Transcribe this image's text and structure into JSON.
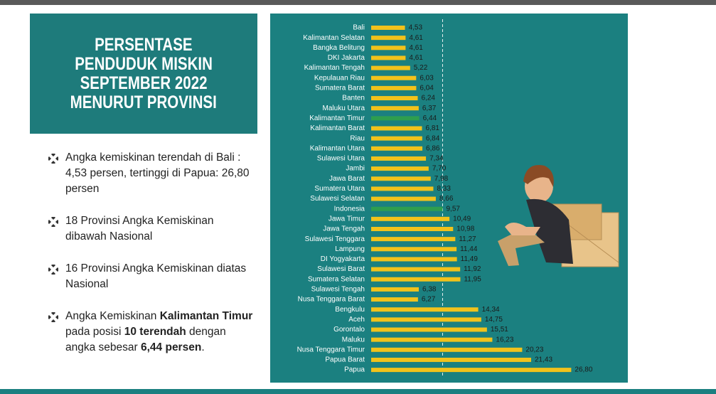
{
  "panel": {
    "title_lines": [
      "PERSENTASE",
      "PENDUDUK MISKIN",
      "SEPTEMBER 2022",
      "MENURUT PROVINSI"
    ]
  },
  "bullets": [
    [
      {
        "text": "Angka kemiskinan terendah di Bali : 4,53 persen, tertinggi di Papua: 26,80 persen",
        "bold": false
      }
    ],
    [
      {
        "text": "18 Provinsi Angka Kemiskinan dibawah Nasional",
        "bold": false
      }
    ],
    [
      {
        "text": "16 Provinsi Angka Kemiskinan diatas Nasional",
        "bold": false
      }
    ],
    [
      {
        "text": "Angka Kemiskinan ",
        "bold": false
      },
      {
        "text": "Kalimantan Timur",
        "bold": true
      },
      {
        "text": " pada posisi ",
        "bold": false
      },
      {
        "text": "10 terendah",
        "bold": true
      },
      {
        "text": " dengan angka sebesar ",
        "bold": false
      },
      {
        "text": "6,44 persen",
        "bold": true
      },
      {
        "text": ".",
        "bold": false
      }
    ]
  ],
  "chart_data": {
    "type": "hbar",
    "categories": [
      "Bali",
      "Kalimantan Selatan",
      "Bangka Belitung",
      "DKI Jakarta",
      "Kalimantan Tengah",
      "Kepulauan Riau",
      "Sumatera Barat",
      "Banten",
      "Maluku Utara",
      "Kalimantan Timur",
      "Kalimantan Barat",
      "Riau",
      "Kalimantan Utara",
      "Sulawesi Utara",
      "Jambi",
      "Jawa Barat",
      "Sumatera Utara",
      "Sulawesi Selatan",
      "Indonesia",
      "Jawa Timur",
      "Jawa Tengah",
      "Sulawesi Tenggara",
      "Lampung",
      "DI Yogyakarta",
      "Sulawesi Barat",
      "Sumatera Selatan",
      "Sulawesi Tengah",
      "Nusa Tenggara Barat",
      "Bengkulu",
      "Aceh",
      "Gorontalo",
      "Maluku",
      "Nusa Tenggara Timur",
      "Papua Barat",
      "Papua"
    ],
    "values": [
      4.53,
      4.61,
      4.61,
      4.61,
      5.22,
      6.03,
      6.04,
      6.24,
      6.37,
      6.44,
      6.81,
      6.84,
      6.86,
      7.34,
      7.7,
      7.98,
      8.33,
      8.66,
      9.57,
      10.49,
      10.98,
      11.27,
      11.44,
      11.49,
      11.92,
      11.95,
      6.38,
      6.27,
      14.34,
      14.75,
      15.51,
      16.23,
      20.23,
      21.43,
      26.8
    ],
    "value_labels": [
      "4,53",
      "4,61",
      "4,61",
      "4,61",
      "5,22",
      "6,03",
      "6,04",
      "6,24",
      "6,37",
      "6,44",
      "6,81",
      "6,84",
      "6,86",
      "7,34",
      "7,70",
      "7,98",
      "8,33",
      "8,66",
      "9,57",
      "10,49",
      "10,98",
      "11,27",
      "11,44",
      "11,49",
      "11,92",
      "11,95",
      "6,38",
      "6,27",
      "14,34",
      "14,75",
      "15,51",
      "16,23",
      "20,23",
      "21,43",
      "26,80"
    ],
    "colors": [
      "#f2c21b",
      "#f2c21b",
      "#f2c21b",
      "#f2c21b",
      "#f2c21b",
      "#f2c21b",
      "#f2c21b",
      "#f2c21b",
      "#f2c21b",
      "#2e9e4f",
      "#f2c21b",
      "#f2c21b",
      "#f2c21b",
      "#f2c21b",
      "#f2c21b",
      "#f2c21b",
      "#f2c21b",
      "#f2c21b",
      "#2e9e4f",
      "#f2c21b",
      "#f2c21b",
      "#f2c21b",
      "#f2c21b",
      "#f2c21b",
      "#f2c21b",
      "#f2c21b",
      "#f2c21b",
      "#f2c21b",
      "#f2c21b",
      "#f2c21b",
      "#f2c21b",
      "#f2c21b",
      "#f2c21b",
      "#f2c21b",
      "#f2c21b"
    ],
    "xlim": [
      0,
      30
    ],
    "reference_category": "Indonesia"
  }
}
